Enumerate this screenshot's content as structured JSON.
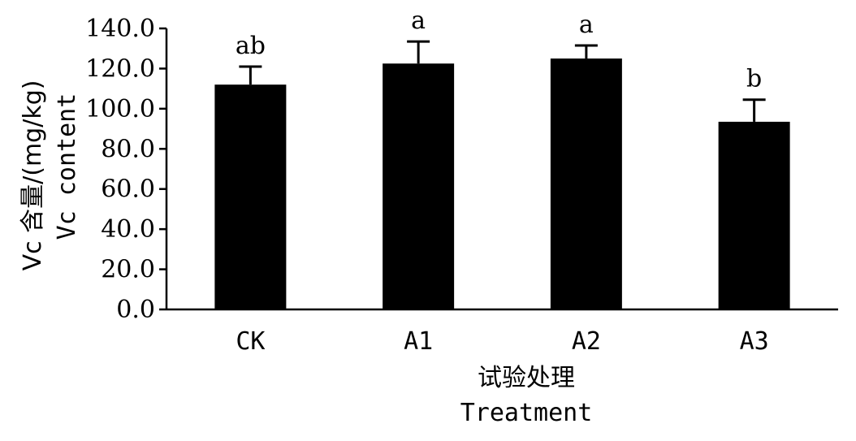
{
  "chart_data": {
    "type": "bar",
    "categories": [
      "CK",
      "A1",
      "A2",
      "A3"
    ],
    "values": [
      112.0,
      122.5,
      125.0,
      93.5
    ],
    "errors": [
      9.0,
      11.0,
      6.5,
      11.0
    ],
    "significance": [
      "ab",
      "a",
      "a",
      "b"
    ],
    "ylim": [
      0,
      140
    ],
    "yticks": [
      "0.0",
      "20.0",
      "40.0",
      "60.0",
      "80.0",
      "100.0",
      "120.0",
      "140.0"
    ],
    "ylabel_cn": "Vc 含量/(mg/kg)",
    "ylabel_en": "Vc content",
    "xlabel_cn": "试验处理",
    "xlabel_en": "Treatment",
    "bar_color": "#000000",
    "grid": false
  }
}
